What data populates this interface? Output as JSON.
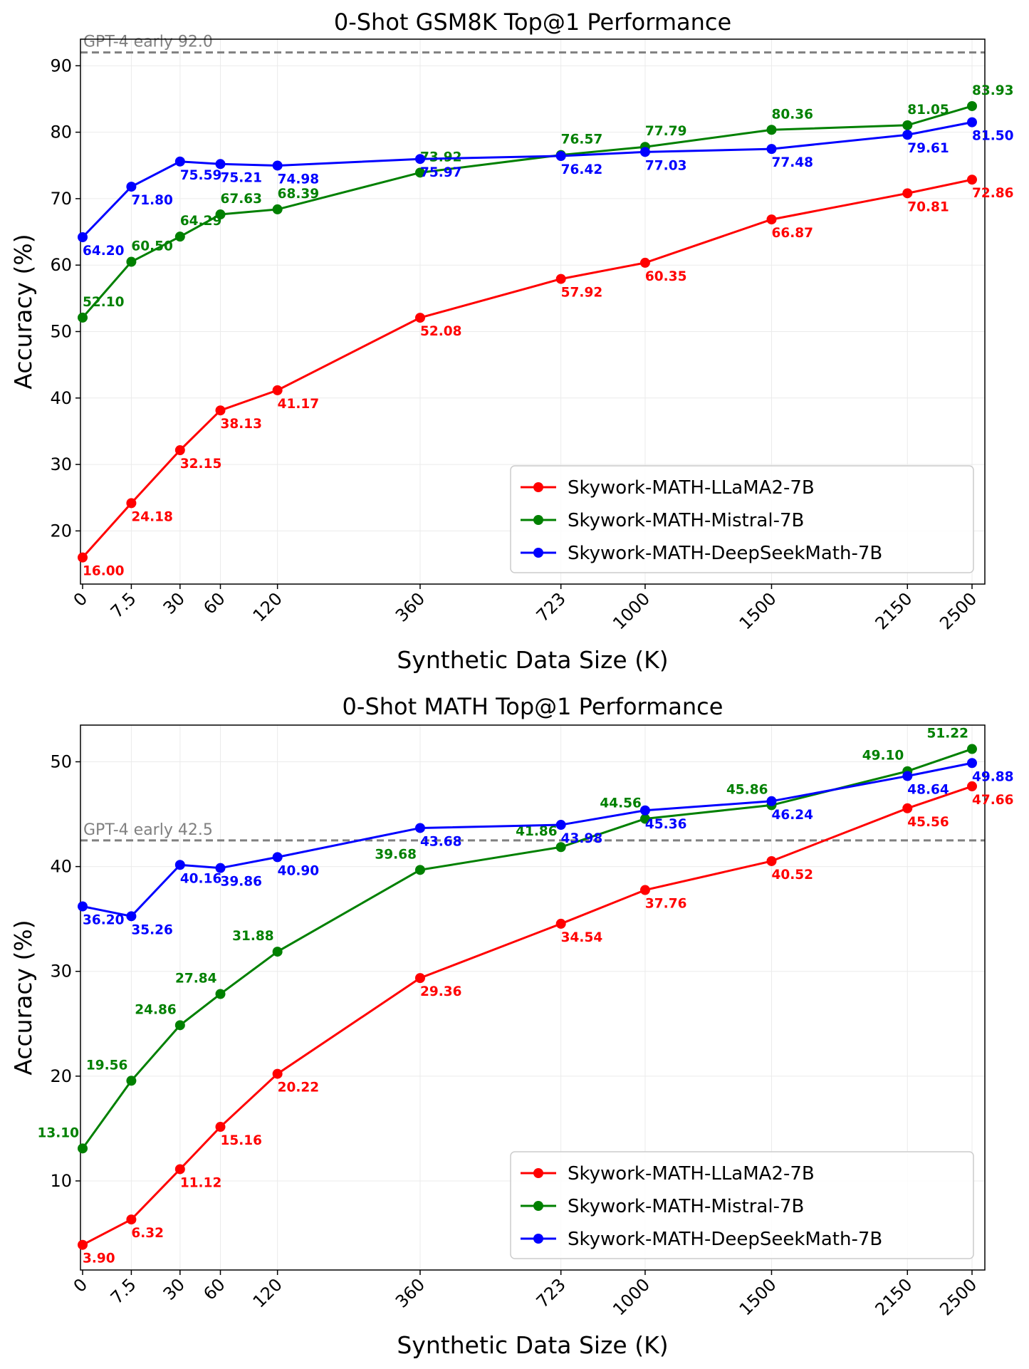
{
  "chart_data": [
    {
      "type": "line",
      "title": "0-Shot GSM8K Top@1 Performance",
      "xlabel": "Synthetic Data Size (K)",
      "ylabel": "Accuracy (%)",
      "x": [
        0,
        7.5,
        30,
        60,
        120,
        360,
        723,
        1000,
        1500,
        2150,
        2500
      ],
      "x_tick_labels": [
        "0",
        "7.5",
        "30",
        "60",
        "120",
        "360",
        "723",
        "1000",
        "1500",
        "2150",
        "2500"
      ],
      "ylim": [
        12,
        94
      ],
      "y_ticks": [
        20,
        30,
        40,
        50,
        60,
        70,
        80,
        90
      ],
      "grid": true,
      "legend": "lower-right",
      "reference_line": {
        "label": "GPT-4 early 92.0",
        "value": 92.0,
        "color": "#808080"
      },
      "series": [
        {
          "name": "Skywork-MATH-LLaMA2-7B",
          "color": "#ff0000",
          "values": [
            16.0,
            24.18,
            32.15,
            38.13,
            41.17,
            52.08,
            57.92,
            60.35,
            66.87,
            70.81,
            72.86
          ],
          "labels": [
            "16.00",
            "24.18",
            "32.15",
            "38.13",
            "41.17",
            "52.08",
            "57.92",
            "60.35",
            "66.87",
            "70.81",
            "72.86"
          ]
        },
        {
          "name": "Skywork-MATH-Mistral-7B",
          "color": "#008000",
          "values": [
            52.1,
            60.5,
            64.29,
            67.63,
            68.39,
            73.92,
            76.57,
            77.79,
            80.36,
            81.05,
            83.93
          ],
          "labels": [
            "52.10",
            "60.50",
            "64.29",
            "67.63",
            "68.39",
            "73.92",
            "76.57",
            "77.79",
            "80.36",
            "81.05",
            "83.93"
          ]
        },
        {
          "name": "Skywork-MATH-DeepSeekMath-7B",
          "color": "#0000ff",
          "values": [
            64.2,
            71.8,
            75.59,
            75.21,
            74.98,
            75.97,
            76.42,
            77.03,
            77.48,
            79.61,
            81.5
          ],
          "labels": [
            "64.20",
            "71.80",
            "75.59",
            "75.21",
            "74.98",
            "75.97",
            "76.42",
            "77.03",
            "77.48",
            "79.61",
            "81.50"
          ]
        }
      ]
    },
    {
      "type": "line",
      "title": "0-Shot MATH Top@1 Performance",
      "xlabel": "Synthetic Data Size (K)",
      "ylabel": "Accuracy (%)",
      "x": [
        0,
        7.5,
        30,
        60,
        120,
        360,
        723,
        1000,
        1500,
        2150,
        2500
      ],
      "x_tick_labels": [
        "0",
        "7.5",
        "30",
        "60",
        "120",
        "360",
        "723",
        "1000",
        "1500",
        "2150",
        "2500"
      ],
      "ylim": [
        1.5,
        53.5
      ],
      "y_ticks": [
        10,
        20,
        30,
        40,
        50
      ],
      "grid": true,
      "legend": "lower-right",
      "reference_line": {
        "label": "GPT-4 early 42.5",
        "value": 42.5,
        "color": "#808080"
      },
      "series": [
        {
          "name": "Skywork-MATH-LLaMA2-7B",
          "color": "#ff0000",
          "values": [
            3.9,
            6.32,
            11.12,
            15.16,
            20.22,
            29.36,
            34.54,
            37.76,
            40.52,
            45.56,
            47.66
          ],
          "labels": [
            "3.90",
            "6.32",
            "11.12",
            "15.16",
            "20.22",
            "29.36",
            "34.54",
            "37.76",
            "40.52",
            "45.56",
            "47.66"
          ]
        },
        {
          "name": "Skywork-MATH-Mistral-7B",
          "color": "#008000",
          "values": [
            13.1,
            19.56,
            24.86,
            27.84,
            31.88,
            39.68,
            41.86,
            44.56,
            45.86,
            49.1,
            51.22
          ],
          "labels": [
            "13.10",
            "19.56",
            "24.86",
            "27.84",
            "31.88",
            "39.68",
            "41.86",
            "44.56",
            "45.86",
            "49.10",
            "51.22"
          ]
        },
        {
          "name": "Skywork-MATH-DeepSeekMath-7B",
          "color": "#0000ff",
          "values": [
            36.2,
            35.26,
            40.16,
            39.86,
            40.9,
            43.68,
            43.98,
            45.36,
            46.24,
            48.64,
            49.88
          ],
          "labels": [
            "36.20",
            "35.26",
            "40.16",
            "39.86",
            "40.90",
            "43.68",
            "43.98",
            "45.36",
            "46.24",
            "48.64",
            "49.88"
          ]
        }
      ]
    }
  ]
}
